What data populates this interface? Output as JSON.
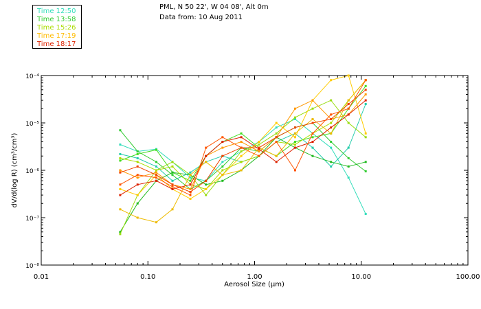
{
  "header": {
    "line1": "PML, N 50 22', W 04 08', Alt 0m",
    "line2": "Data from: 10 Aug 2011"
  },
  "chart_data": {
    "type": "line",
    "xlabel": "Aerosol Size (μm)",
    "ylabel": "dV/d(log R) (cm³/cm³)",
    "xscale": "log",
    "yscale": "log",
    "xlim": [
      0.01,
      100
    ],
    "ylim": [
      1e-08,
      0.0001
    ],
    "x_ticks": [
      0.01,
      0.1,
      1,
      10,
      100
    ],
    "x_tick_labels": [
      "0.01",
      "0.10",
      "1.00",
      "10.00",
      "100.00"
    ],
    "y_ticks": [
      1e-08,
      1e-07,
      1e-06,
      1e-05,
      0.0001
    ],
    "y_tick_labels": [
      "10⁻⁸",
      "10⁻⁷",
      "10⁻⁶",
      "10⁻⁵",
      "10⁻⁴"
    ],
    "grid": false,
    "legend_position": "top-left",
    "x": [
      0.055,
      0.08,
      0.12,
      0.17,
      0.25,
      0.35,
      0.5,
      0.75,
      1.1,
      1.6,
      2.4,
      3.5,
      5.2,
      7.6,
      11.0
    ],
    "series": [
      {
        "name": "Time 12:50",
        "color": "#33ddbb",
        "values": [
          3.5e-06,
          2.5e-06,
          2.8e-06,
          1.5e-06,
          7e-07,
          6e-07,
          1.5e-06,
          2.5e-06,
          4e-06,
          8e-06,
          1.2e-05,
          6e-06,
          3e-06,
          7e-07,
          1.2e-07
        ]
      },
      {
        "name": "Time 12:50",
        "color": "#22ccaa",
        "values": [
          2.2e-06,
          1.8e-06,
          1.2e-06,
          6e-07,
          9e-07,
          1.5e-06,
          2e-06,
          1.5e-06,
          2e-06,
          4e-06,
          6e-06,
          3e-06,
          1.2e-06,
          3e-06,
          2.5e-05
        ]
      },
      {
        "name": "Time 13:58",
        "color": "#33cc33",
        "values": [
          7e-06,
          2.5e-06,
          1.5e-06,
          8e-07,
          4e-07,
          6e-07,
          1.2e-06,
          3e-06,
          2.5e-06,
          5e-06,
          8e-06,
          1e-05,
          4e-06,
          1.8e-06,
          9.5e-07
        ]
      },
      {
        "name": "Time 13:58",
        "color": "#44dd22",
        "values": [
          1.6e-06,
          2.2e-06,
          2.7e-06,
          9e-07,
          6e-07,
          2e-06,
          4e-06,
          6e-06,
          3e-06,
          2e-06,
          4e-06,
          5e-06,
          6e-06,
          2e-05,
          6e-05
        ]
      },
      {
        "name": "Time 13:58",
        "color": "#22bb22",
        "values": [
          5e-08,
          2e-07,
          6e-07,
          9e-07,
          8e-07,
          5e-07,
          6e-07,
          1e-06,
          2e-06,
          5e-06,
          3e-06,
          2e-06,
          1.5e-06,
          1.2e-06,
          1.5e-06
        ]
      },
      {
        "name": "Time 15:26",
        "color": "#99dd11",
        "values": [
          4.5e-08,
          3e-07,
          1e-06,
          1.5e-06,
          8e-07,
          3e-07,
          8e-07,
          2.5e-06,
          3.5e-06,
          6e-06,
          1.3e-05,
          2e-05,
          3e-05,
          1e-05,
          5e-06
        ]
      },
      {
        "name": "Time 15:26",
        "color": "#aadd00",
        "values": [
          1.8e-06,
          1.5e-06,
          1e-06,
          1.2e-06,
          5e-07,
          4e-07,
          1e-06,
          1.5e-06,
          2e-06,
          4e-06,
          3.5e-06,
          6e-06,
          1e-05,
          3e-05,
          8e-05
        ]
      },
      {
        "name": "Time 17:19",
        "color": "#ffcc00",
        "values": [
          4e-07,
          3e-07,
          8e-07,
          4e-07,
          2.5e-07,
          4e-07,
          8e-07,
          2e-06,
          4e-06,
          1e-05,
          5e-06,
          3e-05,
          8e-05,
          0.0001,
          6e-06
        ]
      },
      {
        "name": "Time 17:19",
        "color": "#eebb00",
        "values": [
          1.5e-07,
          1e-07,
          8e-08,
          1.5e-07,
          8e-07,
          1.5e-06,
          8e-07,
          1e-06,
          3e-06,
          2e-06,
          6e-06,
          1.2e-05,
          6e-06,
          3e-05,
          8e-05
        ]
      },
      {
        "name": "Time 17:19",
        "color": "#ff9900",
        "values": [
          1e-06,
          7e-07,
          9e-07,
          5e-07,
          4e-07,
          2e-06,
          3e-06,
          4e-06,
          2.5e-06,
          5e-06,
          2e-05,
          3e-05,
          1.2e-05,
          1.5e-05,
          4e-05
        ]
      },
      {
        "name": "Time 18:17",
        "color": "#ee4400",
        "values": [
          9e-07,
          1.2e-06,
          8e-07,
          5e-07,
          3.5e-07,
          6e-07,
          2e-06,
          3e-06,
          3e-06,
          5e-06,
          8e-06,
          1e-05,
          1.2e-05,
          2.5e-05,
          5e-05
        ]
      },
      {
        "name": "Time 18:17",
        "color": "#dd2200",
        "values": [
          3e-07,
          5e-07,
          6e-07,
          4e-07,
          5e-07,
          2e-06,
          4e-06,
          5e-06,
          2.8e-06,
          1.5e-06,
          3e-06,
          4e-06,
          8e-06,
          1.5e-05,
          3e-05
        ]
      },
      {
        "name": "Time 18:17",
        "color": "#ff5500",
        "values": [
          5e-07,
          8e-07,
          7e-07,
          4.5e-07,
          3e-07,
          3e-06,
          5e-06,
          3e-06,
          2e-06,
          4e-06,
          1e-06,
          6e-06,
          1.5e-05,
          2e-05,
          8e-05
        ]
      }
    ],
    "legend": [
      {
        "label": "Time 12:50",
        "color": "#33ddbb"
      },
      {
        "label": "Time 13:58",
        "color": "#33cc33"
      },
      {
        "label": "Time 15:26",
        "color": "#aadd00"
      },
      {
        "label": "Time 17:19",
        "color": "#ffbb00"
      },
      {
        "label": "Time 18:17",
        "color": "#dd2200"
      }
    ]
  }
}
